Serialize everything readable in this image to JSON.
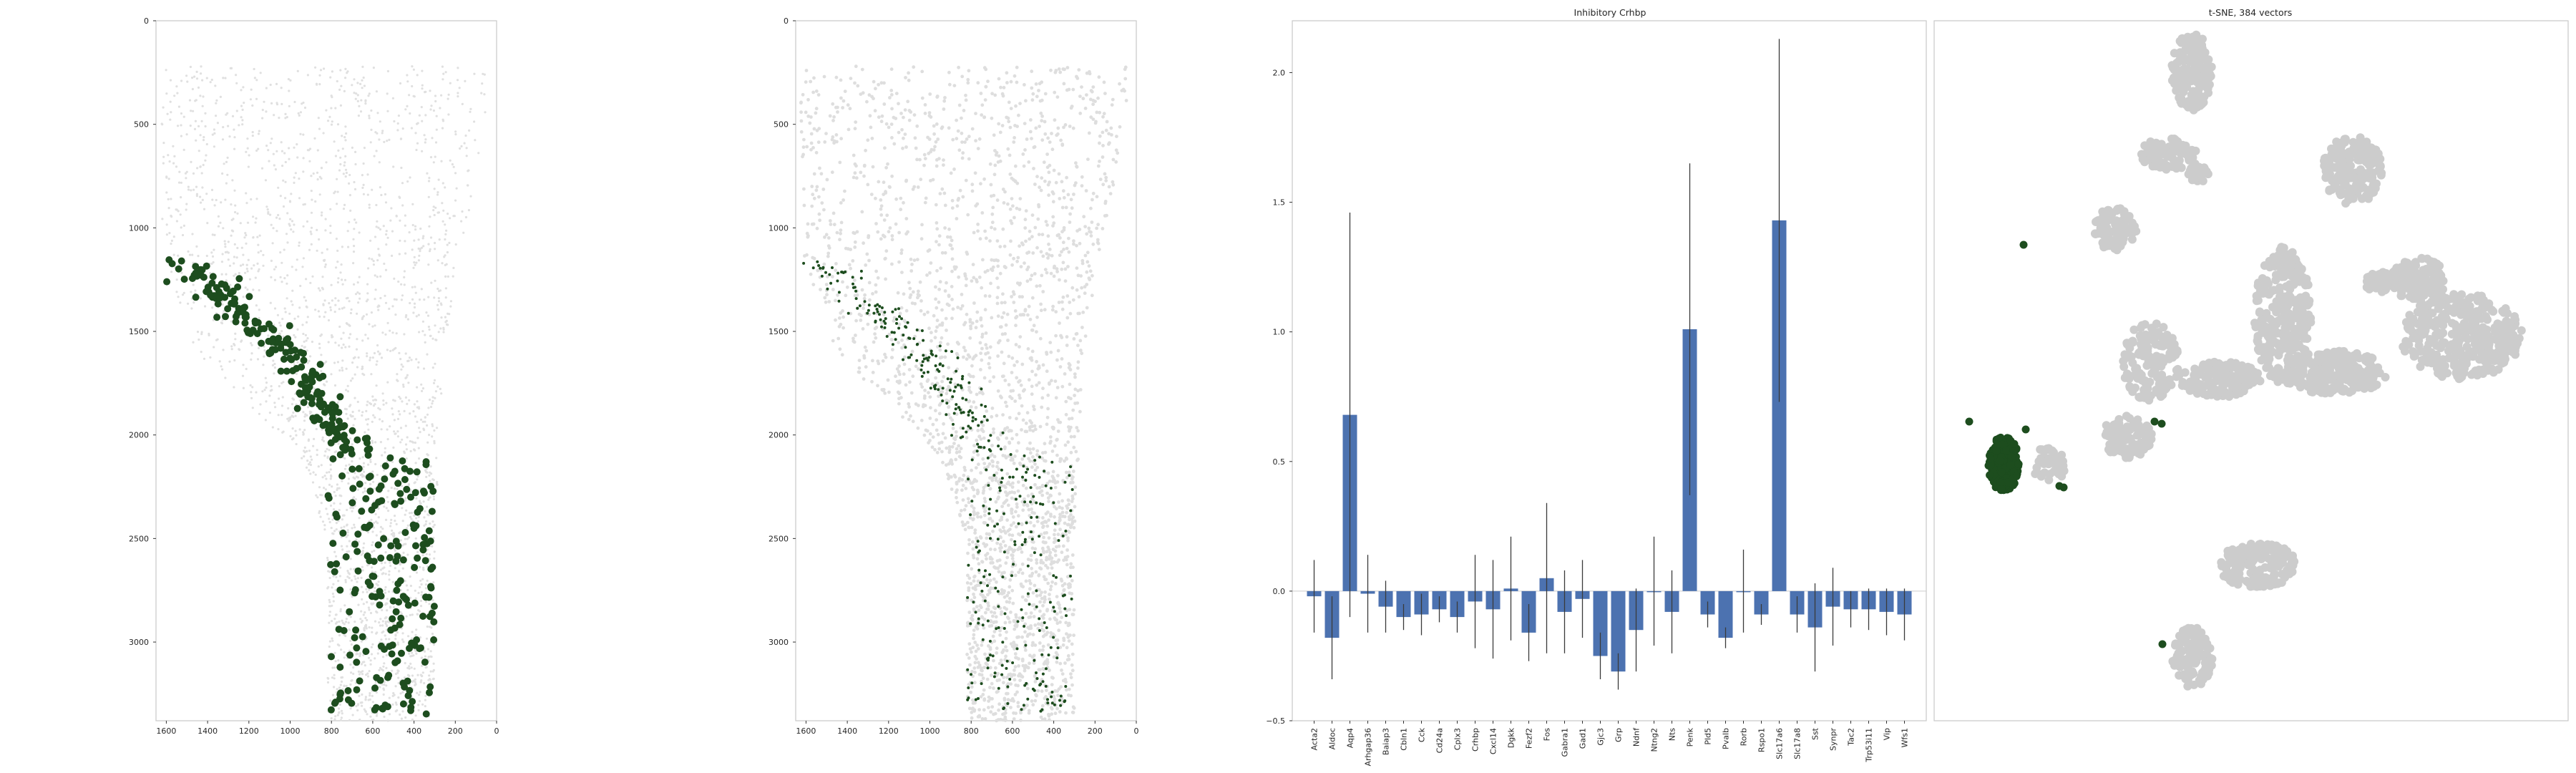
{
  "colors": {
    "highlight": "#1d4d1e",
    "bar": "#4c72b0",
    "background_cells": "#cccccc",
    "frame": "#cccccc"
  },
  "chart_data": [
    {
      "type": "scatter",
      "subtitle": "",
      "xlim": [
        1650,
        0
      ],
      "ylim": [
        3380,
        0
      ],
      "xticks": [
        1600,
        1400,
        1200,
        1000,
        800,
        600,
        400,
        200,
        0
      ],
      "yticks": [
        0,
        500,
        1000,
        1500,
        2000,
        2500,
        3000
      ],
      "xtick_labels": [
        "1600",
        "1400",
        "1200",
        "1000",
        "800",
        "600",
        "400",
        "200",
        "0"
      ],
      "ytick_labels": [
        "0",
        "500",
        "1000",
        "1500",
        "2000",
        "2500",
        "3000"
      ],
      "grid": false,
      "highlight_marker": "large"
    },
    {
      "type": "scatter",
      "subtitle": "",
      "xlim": [
        1650,
        0
      ],
      "ylim": [
        3380,
        0
      ],
      "xticks": [
        1600,
        1400,
        1200,
        1000,
        800,
        600,
        400,
        200,
        0
      ],
      "yticks": [
        0,
        500,
        1000,
        1500,
        2000,
        2500,
        3000
      ],
      "xtick_labels": [
        "1600",
        "1400",
        "1200",
        "1000",
        "800",
        "600",
        "400",
        "200",
        "0"
      ],
      "ytick_labels": [
        "0",
        "500",
        "1000",
        "1500",
        "2000",
        "2500",
        "3000"
      ],
      "grid": false,
      "highlight_marker": "small"
    },
    {
      "type": "bar",
      "title": "Inhibitory Crhbp",
      "categories": [
        "Acta2",
        "Aldoc",
        "Aqp4",
        "Arhgap36",
        "Baiap3",
        "Cbln1",
        "Cck",
        "Cd24a",
        "Cplx3",
        "Crhbp",
        "Cxcl14",
        "Dgkk",
        "Fezf2",
        "Fos",
        "Gabra1",
        "Gad1",
        "Gjc3",
        "Grp",
        "Ndnf",
        "Ntng2",
        "Nts",
        "Penk",
        "Pld5",
        "Pvalb",
        "Rorb",
        "Rspo1",
        "Slc17a6",
        "Slc17a8",
        "Sst",
        "Synpr",
        "Tac2",
        "Trp53i11",
        "Vip",
        "Wfs1"
      ],
      "values": [
        -0.02,
        -0.18,
        0.68,
        -0.01,
        -0.06,
        -0.1,
        -0.09,
        -0.07,
        -0.1,
        -0.04,
        -0.07,
        0.01,
        -0.16,
        0.05,
        -0.08,
        -0.03,
        -0.25,
        -0.31,
        -0.15,
        0.0,
        -0.08,
        1.01,
        -0.09,
        -0.18,
        0.0,
        -0.09,
        1.43,
        -0.09,
        -0.14,
        -0.06,
        -0.07,
        -0.07,
        -0.08,
        -0.09
      ],
      "errors": [
        0.14,
        0.16,
        0.78,
        0.15,
        0.1,
        0.05,
        0.08,
        0.05,
        0.06,
        0.18,
        0.19,
        0.2,
        0.11,
        0.29,
        0.16,
        0.15,
        0.09,
        0.07,
        0.16,
        0.21,
        0.16,
        0.64,
        0.05,
        0.04,
        0.16,
        0.04,
        0.7,
        0.07,
        0.17,
        0.15,
        0.07,
        0.08,
        0.09,
        0.1
      ],
      "ylim": [
        -0.5,
        2.2
      ],
      "yticks": [
        -0.5,
        0.0,
        0.5,
        1.0,
        1.5,
        2.0
      ],
      "ytick_labels": [
        "−0.5",
        "0.0",
        "0.5",
        "1.0",
        "1.5",
        "2.0"
      ],
      "grid": false
    },
    {
      "type": "scatter",
      "title": "t-SNE, 384 vectors",
      "axes": "off",
      "grid": false
    }
  ]
}
